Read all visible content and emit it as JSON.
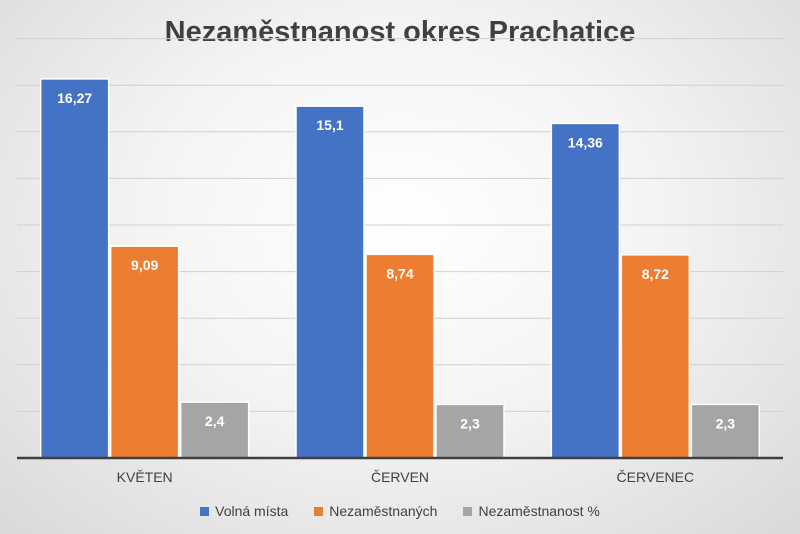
{
  "chart_data": {
    "type": "bar",
    "title": "Nezaměstnanost okres Prachatice",
    "xlabel": "",
    "ylabel": "",
    "ylim": [
      0,
      18
    ],
    "categories": [
      "KVĚTEN",
      "ČERVEN",
      "ČERVENEC"
    ],
    "series": [
      {
        "name": "Volná místa",
        "color": "#4472c4",
        "values": [
          16.27,
          15.1,
          14.36
        ],
        "labels": [
          "16,27",
          "15,1",
          "14,36"
        ]
      },
      {
        "name": "Nezaměstnaných",
        "color": "#ed7d31",
        "values": [
          9.09,
          8.74,
          8.72
        ],
        "labels": [
          "9,09",
          "8,74",
          "8,72"
        ]
      },
      {
        "name": "Nezaměstnanost %",
        "color": "#a5a5a5",
        "values": [
          2.4,
          2.3,
          2.3
        ],
        "labels": [
          "2,4",
          "2,3",
          "2,3"
        ]
      }
    ],
    "grid": true,
    "legend": "bottom"
  }
}
